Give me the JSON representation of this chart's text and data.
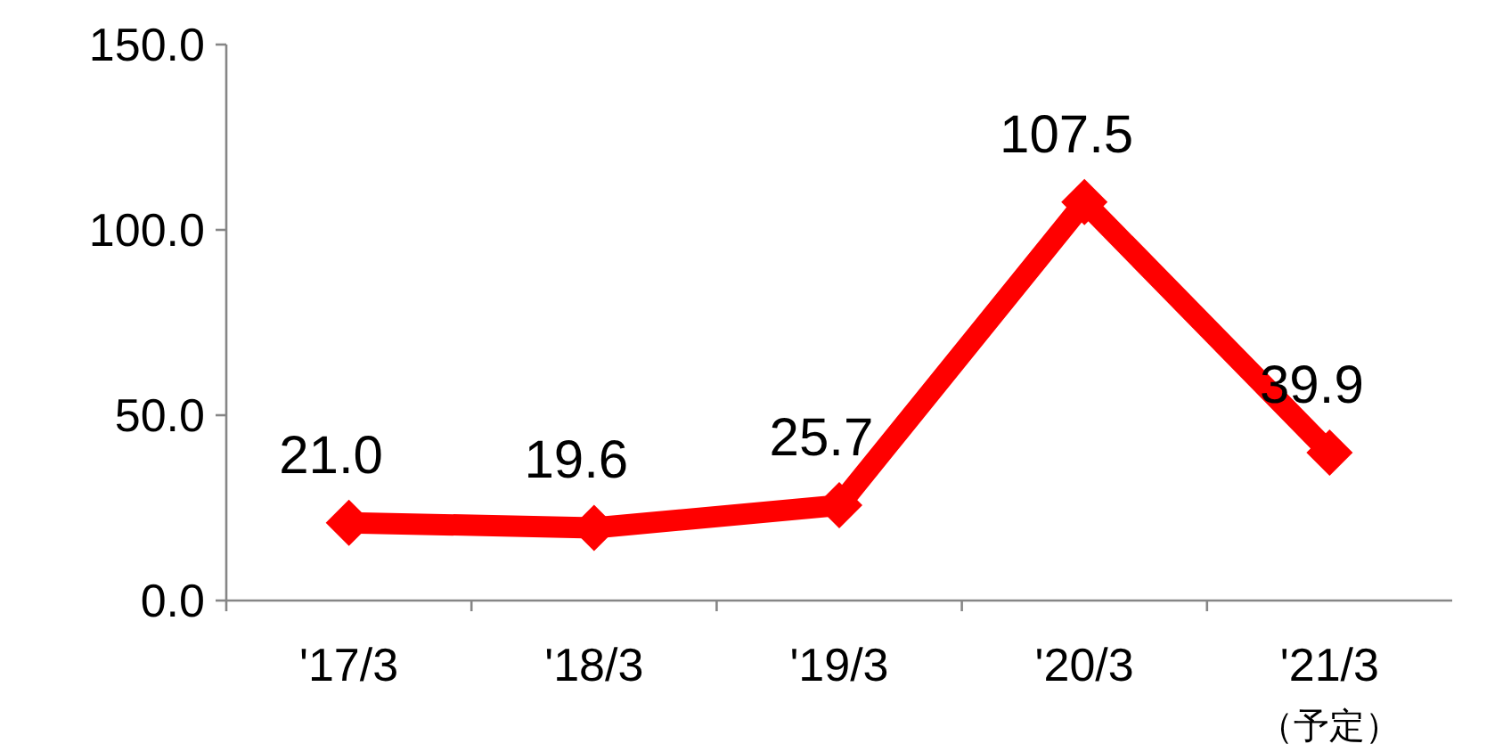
{
  "chart_data": {
    "type": "line",
    "categories": [
      "'17/3",
      "'18/3",
      "'19/3",
      "'20/3",
      "'21/3\n（予定）"
    ],
    "series": [
      {
        "color": "#ff0000",
        "values": [
          21.0,
          19.6,
          25.7,
          107.5,
          39.9
        ]
      }
    ],
    "ylim": [
      0,
      150
    ],
    "yticks": [
      {
        "value": 0,
        "label": "0.0"
      },
      {
        "value": 50,
        "label": "50.0"
      },
      {
        "value": 100,
        "label": "100.0"
      },
      {
        "value": 150,
        "label": "150.0"
      }
    ],
    "value_labels": [
      "21.0",
      "19.6",
      "25.7",
      "107.5",
      "39.9"
    ],
    "grid": false,
    "marker": "diamond",
    "line_style": "solid"
  }
}
